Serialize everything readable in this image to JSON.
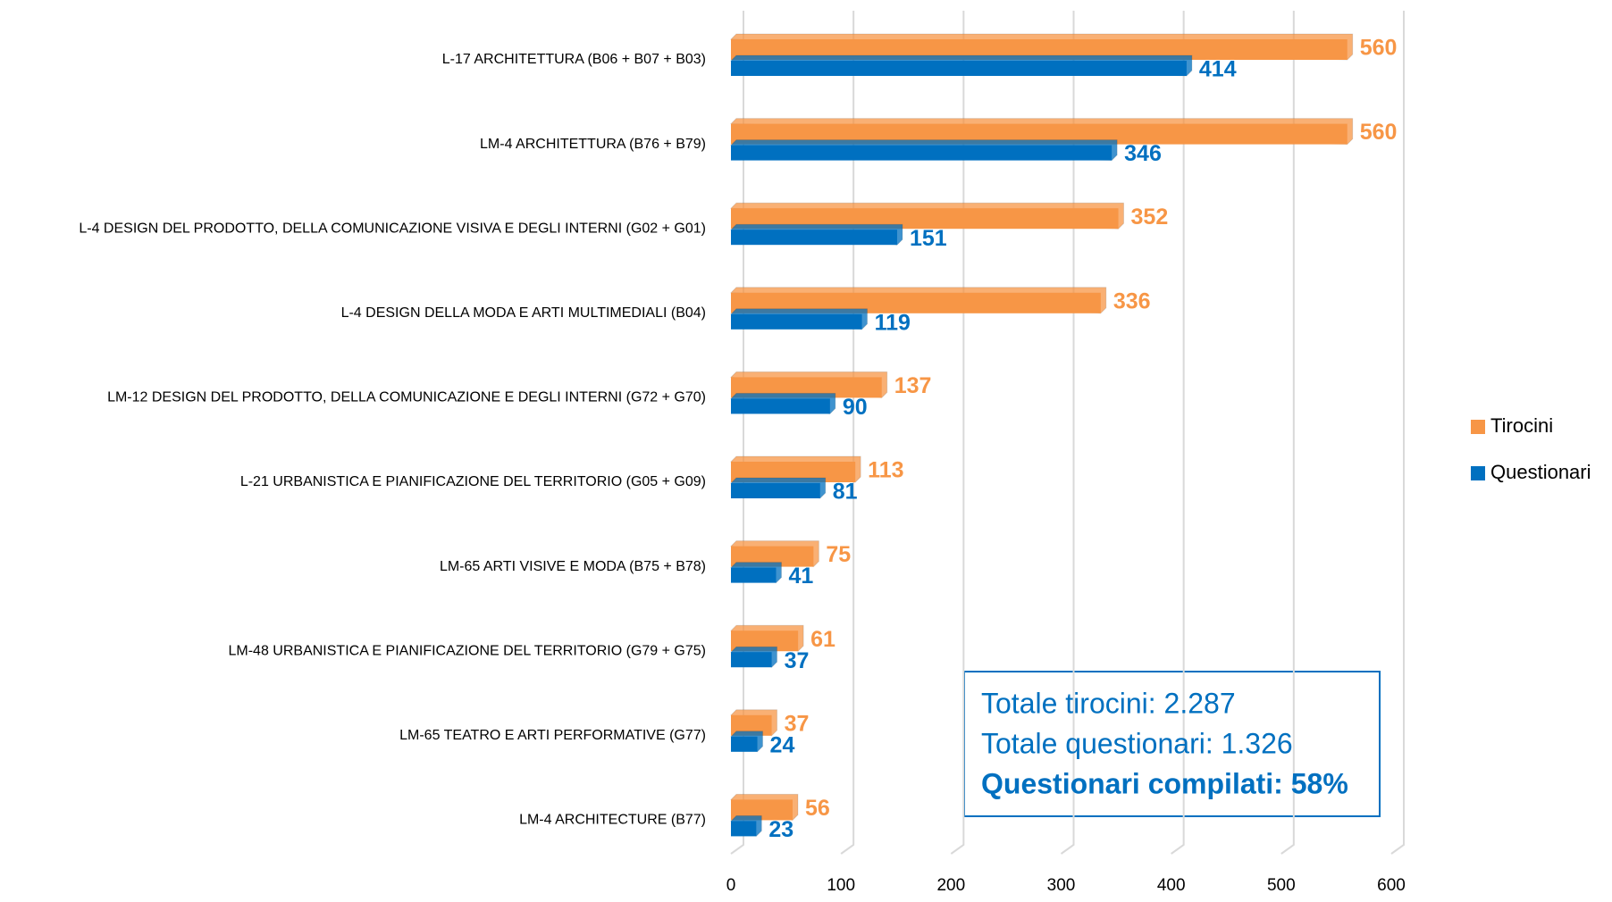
{
  "chart_data": {
    "type": "bar",
    "orientation": "horizontal",
    "categories": [
      "L-17 ARCHITETTURA (B06 + B07 + B03)",
      "LM-4 ARCHITETTURA (B76 + B79)",
      "L-4 DESIGN DEL PRODOTTO, DELLA COMUNICAZIONE VISIVA E DEGLI INTERNI (G02 + G01)",
      "L-4 DESIGN DELLA MODA E ARTI MULTIMEDIALI (B04)",
      "LM-12 DESIGN DEL PRODOTTO, DELLA COMUNICAZIONE E DEGLI INTERNI (G72 + G70)",
      "L-21 URBANISTICA E PIANIFICAZIONE DEL TERRITORIO (G05 + G09)",
      "LM-65 ARTI VISIVE E MODA (B75 + B78)",
      "LM-48 URBANISTICA E PIANIFICAZIONE DEL TERRITORIO (G79 + G75)",
      "LM-65 TEATRO E ARTI PERFORMATIVE (G77)",
      "LM-4 ARCHITECTURE (B77)"
    ],
    "series": [
      {
        "name": "Tirocini",
        "color": "#f79646",
        "values": [
          560,
          560,
          352,
          336,
          137,
          113,
          75,
          61,
          37,
          56
        ]
      },
      {
        "name": "Questionari",
        "color": "#0070c0",
        "values": [
          414,
          346,
          151,
          119,
          90,
          81,
          41,
          37,
          24,
          23
        ]
      }
    ],
    "xlim": [
      0,
      600
    ],
    "xticks": [
      0,
      100,
      200,
      300,
      400,
      500,
      600
    ],
    "grid": true,
    "legend": "right",
    "annotations": [
      "Totale tirocini: 2.287",
      "Totale questionari: 1.326",
      "Questionari compilati: 58%"
    ]
  }
}
